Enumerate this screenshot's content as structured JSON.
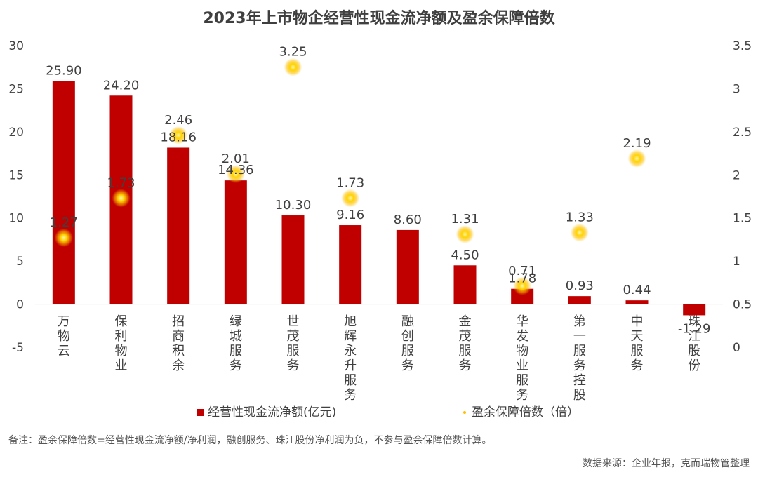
{
  "chart_data": {
    "type": "bar+scatter",
    "title": "2023年上市物企经营性现金流净额及盈余保障倍数",
    "categories": [
      [
        "万",
        "物",
        "云"
      ],
      [
        "保",
        "利",
        "物",
        "业"
      ],
      [
        "招",
        "商",
        "积",
        "余"
      ],
      [
        "绿",
        "城",
        "服",
        "务"
      ],
      [
        "世",
        "茂",
        "服",
        "务"
      ],
      [
        "旭",
        "辉",
        "永",
        "升",
        "服",
        "务"
      ],
      [
        "融",
        "创",
        "服",
        "务"
      ],
      [
        "金",
        "茂",
        "服",
        "务"
      ],
      [
        "华",
        "发",
        "物",
        "业",
        "服",
        "务"
      ],
      [
        "第",
        "一",
        "服",
        "务",
        "控",
        "股"
      ],
      [
        "中",
        "天",
        "服",
        "务"
      ],
      [
        "珠",
        "江",
        "股",
        "份"
      ]
    ],
    "series": [
      {
        "name": "经营性现金流净额(亿元)",
        "type": "bar",
        "axis": "left",
        "color": "#c00000",
        "values": [
          25.9,
          24.2,
          18.16,
          14.36,
          10.3,
          9.16,
          8.6,
          4.5,
          1.78,
          0.93,
          0.44,
          -1.29
        ],
        "labels": [
          "25.90",
          "24.20",
          "18.16",
          "14.36",
          "10.30",
          "9.16",
          "8.60",
          "4.50",
          "1.78",
          "0.93",
          "0.44",
          "-1.29"
        ]
      },
      {
        "name": "盈余保障倍数（倍）",
        "type": "scatter",
        "axis": "right",
        "color": "#ffc000",
        "values": [
          1.27,
          1.73,
          2.46,
          2.01,
          3.25,
          1.73,
          null,
          1.31,
          0.71,
          1.33,
          2.19,
          null
        ],
        "labels": [
          "1.27",
          "1.73",
          "2.46",
          "2.01",
          "3.25",
          "1.73",
          null,
          "1.31",
          "0.71",
          "1.33",
          "2.19",
          null
        ]
      }
    ],
    "y_left": {
      "min": -5,
      "max": 30,
      "ticks": [
        "-5",
        "0",
        "5",
        "10",
        "15",
        "20",
        "25",
        "30"
      ]
    },
    "y_right": {
      "min": 0,
      "max": 3.5,
      "ticks": [
        "0",
        "0.5",
        "1",
        "1.5",
        "2",
        "2.5",
        "3",
        "3.5"
      ]
    },
    "grid": false,
    "legend_position": "bottom"
  },
  "legend": {
    "bar_label": "经营性现金流净额(亿元)",
    "dot_label": "盈余保障倍数（倍）"
  },
  "note": "备注：盈余保障倍数=经营性现金流净额/净利润，融创服务、珠江股份净利润为负，不参与盈余保障倍数计算。",
  "source": "数据来源：企业年报，克而瑞物管整理"
}
